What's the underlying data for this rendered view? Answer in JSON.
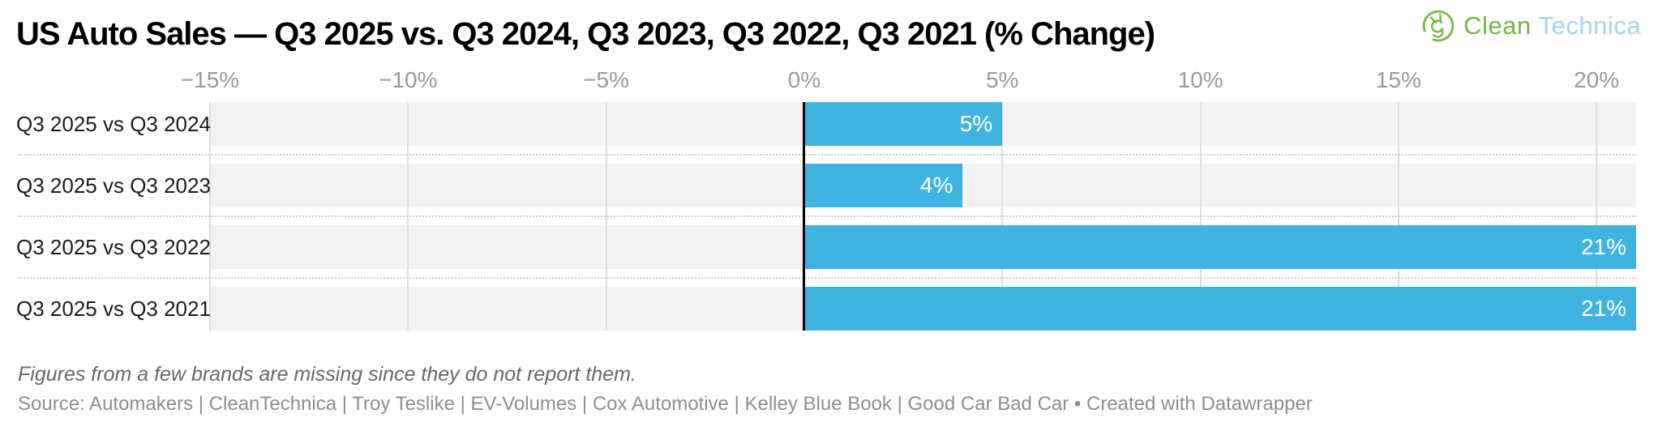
{
  "title": "US Auto Sales — Q3 2025 vs. Q3 2024, Q3 2023, Q3 2022, Q3 2021 (% Change)",
  "logo": {
    "text_primary": "Clean",
    "text_secondary": "Technica",
    "green": "#74b843",
    "blue": "#a6d3f0"
  },
  "chart_data": {
    "type": "bar",
    "orientation": "horizontal",
    "title": "US Auto Sales — Q3 2025 vs. Q3 2024, Q3 2023, Q3 2022, Q3 2021 (% Change)",
    "categories": [
      "Q3 2025 vs Q3 2024",
      "Q3 2025 vs Q3 2023",
      "Q3 2025 vs Q3 2022",
      "Q3 2025 vs Q3 2021"
    ],
    "values": [
      5,
      4,
      21,
      21
    ],
    "value_labels": [
      "5%",
      "4%",
      "21%",
      "21%"
    ],
    "xlim": [
      -15,
      21
    ],
    "ticks": [
      {
        "value": -15,
        "label": "−15%"
      },
      {
        "value": -10,
        "label": "−10%"
      },
      {
        "value": -5,
        "label": "−5%"
      },
      {
        "value": 0,
        "label": "0%"
      },
      {
        "value": 5,
        "label": "5%"
      },
      {
        "value": 10,
        "label": "10%"
      },
      {
        "value": 15,
        "label": "15%"
      },
      {
        "value": 20,
        "label": "20%"
      }
    ],
    "grid": true,
    "zero_line": true,
    "legend": "none",
    "colors": {
      "bar": "#40b4e1",
      "band": "#f2f2f2",
      "gridline": "#dedede",
      "separator": "#cdcdcd",
      "zero_line": "#000000",
      "tick_text": "#9a9a9a",
      "row_label_text": "#1c1c1c",
      "bar_label_text": "#ffffff"
    }
  },
  "footer": {
    "note": "Figures from a few brands are missing since they do not report them.",
    "source": "Source: Automakers | CleanTechnica | Troy Teslike | EV-Volumes | Cox Automotive | Kelley Blue Book | Good Car Bad Car • Created with Datawrapper"
  }
}
